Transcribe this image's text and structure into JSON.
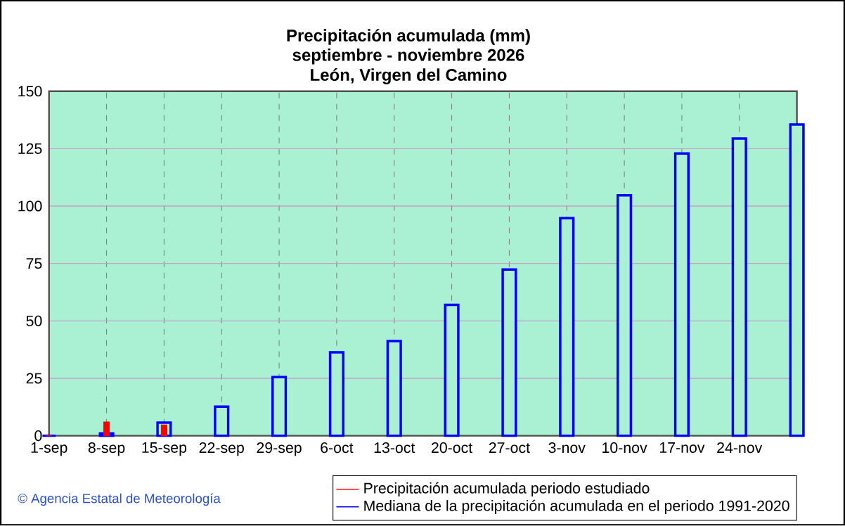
{
  "chart_data": {
    "type": "bar",
    "title": "Precipitación acumulada (mm)",
    "subtitle": "septiembre - noviembre 2026",
    "annotations": [
      "León, Virgen del Camino",
      "© Agencia Estatal de Meteorología"
    ],
    "categories": [
      "1-sep",
      "8-sep",
      "15-sep",
      "22-sep",
      "29-sep",
      "6-oct",
      "13-oct",
      "20-oct",
      "27-oct",
      "3-nov",
      "10-nov",
      "17-nov",
      "24-nov",
      null
    ],
    "series": [
      {
        "name": "Mediana de la precipitación acumulada en el periodo 1991-2020",
        "color": "#0000ff",
        "values": [
          0,
          1,
          5.7,
          12.7,
          25.5,
          36.3,
          41.2,
          57,
          72.4,
          94.7,
          104.7,
          122.9,
          129.4,
          135.5
        ]
      },
      {
        "name": "Precipitación acumulada periodo estudiado",
        "color": "#ff0000",
        "values": [
          0,
          6,
          4.7,
          null,
          null,
          null,
          null,
          null,
          null,
          null,
          null,
          null,
          null,
          null
        ]
      }
    ],
    "ylim": [
      0,
      150
    ],
    "yticks": [
      0,
      25,
      50,
      75,
      100,
      125,
      150
    ],
    "grid": true,
    "legend": "bottom"
  }
}
